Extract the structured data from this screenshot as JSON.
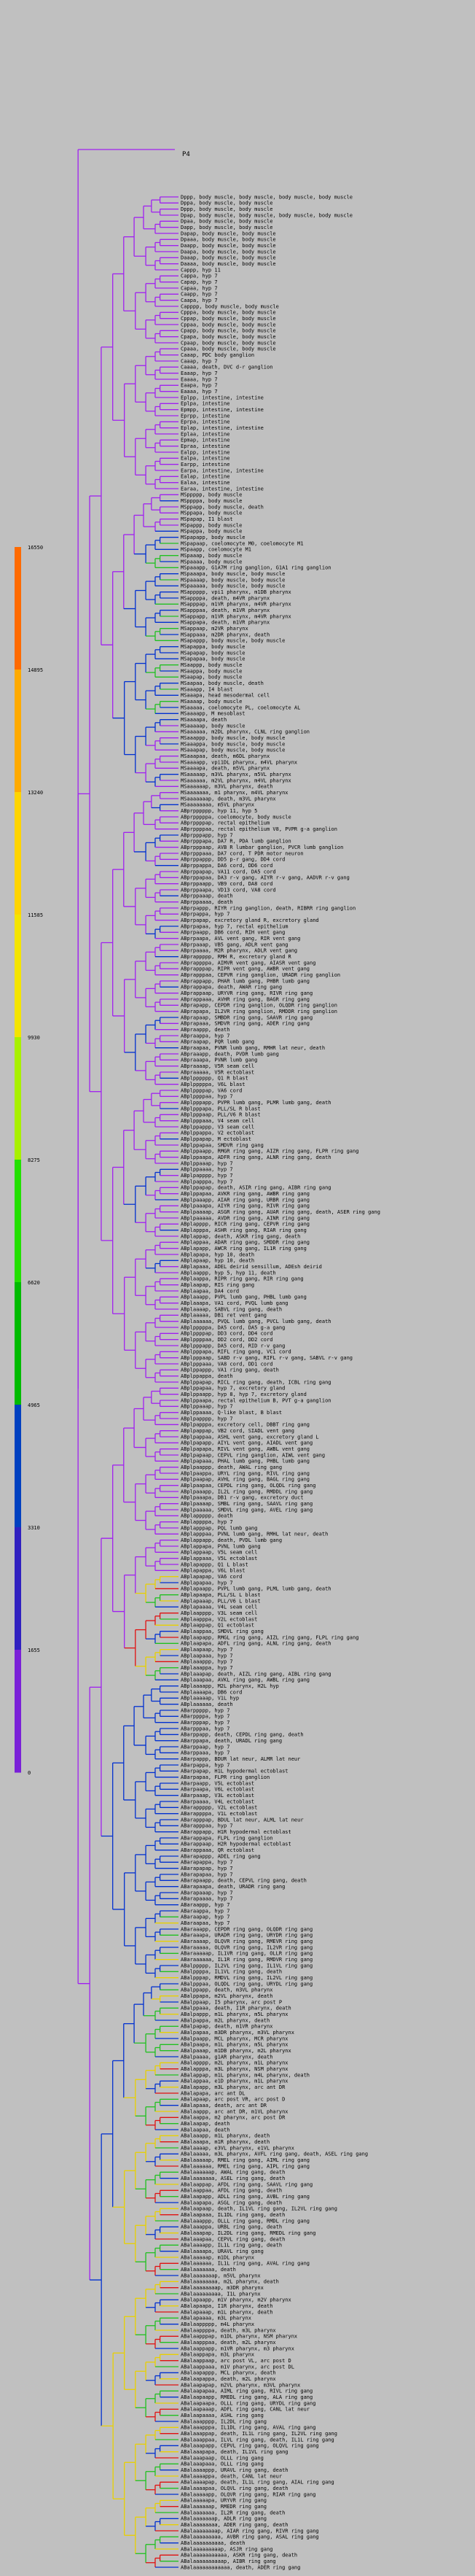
{
  "root_label": "P4",
  "scale": {
    "ticks": [
      "16550",
      "14895",
      "13240",
      "11585",
      "9930",
      "8275",
      "6620",
      "4965",
      "3310",
      "1655",
      "0"
    ],
    "colors": [
      "#ff6a00",
      "#ffaa00",
      "#ffd400",
      "#f4e400",
      "#a8f000",
      "#22e000",
      "#00bb00",
      "#0040c0",
      "#3020c0",
      "#7a20d8",
      "#a020f0"
    ]
  },
  "leaves": [
    "Dppp, body muscle, body muscle, body muscle, body muscle",
    "Dppa, body muscle, body muscle",
    "Dppp, body muscle, body muscle",
    "Dpap, body muscle, body muscle, body muscle, body muscle",
    "Dpaa, body muscle, body muscle",
    "Dapp, body muscle, body muscle",
    "Dapap, body muscle, body muscle",
    "Dpaaa, body muscle, body muscle",
    "Daapp, body muscle, body muscle",
    "Daapa, body muscle, body muscle",
    "Daaap, body muscle, body muscle",
    "Daaaa, body muscle, body muscle",
    "Cappp, hyp 11",
    "Cappa, hyp 7",
    "Capap, hyp 7",
    "Capaa, hyp 7",
    "Caapp, hyp 7",
    "Caapa, hyp 7",
    "Capppp, body muscle, body muscle",
    "Cpppa, body muscle, body muscle",
    "Cppap, body muscle, body muscle",
    "Cppaa, body muscle, body muscle",
    "Cpapp, body muscle, body muscle",
    "Cpapa, body muscle, body muscle",
    "Cpaap, body muscle, body muscle",
    "Cpaaa, body muscle, body muscle",
    "Caaap, PDC body ganglion",
    "Caaap, hyp 7",
    "Caaaa, death, DVC d-r ganglion",
    "Eaaap, hyp 7",
    "Eaaaa, hyp 7",
    "Eaapa, hyp 7",
    "Eaaaa, hyp 7",
    "Eplpp, intestine, intestine",
    "Eplpa, intestine",
    "Epmpp, intestine, intestine",
    "Eprpp, intestine",
    "Eprpa, intestine",
    "Eplap, intestine, intestine",
    "Eplaa, intestine",
    "Epmap, intestine",
    "Epraa, intestine",
    "Ealpp, intestine",
    "Ealpa, intestine",
    "Earpp, intestine",
    "Earpa, intestine, intestine",
    "Ealap, intestine",
    "Ealaa, intestine",
    "Earaa, intestine, intestine",
    "MSppppp, body muscle",
    "MSppppa, body muscle",
    "MSppapp, body muscle, death",
    "MSppapa, body muscle",
    "MSpapap, I1 blast",
    "MSpappp, body muscle",
    "MSpappa, body muscle",
    "MSpapapp, body muscle",
    "MSpapaap, coelomocyte M0, coelomocyte M1",
    "MSpaapp, coelomocyte M1",
    "MSpaaap, body muscle",
    "MSpaaaa, body muscle",
    "MSpaaapp, G1A7M ring ganglion, G1A1 ring ganglion",
    "MSpaaapa, body muscle, body muscle",
    "MSpaaaap, body muscle, body muscle",
    "MSpaaaaa, body muscle, body muscle",
    "MSappppp, vpi1 pharynx, m1DB pharynx",
    "MSappppa, death, m4VR pharynx",
    "MSapppap, m1VR pharynx, m4VR pharynx",
    "MSapppaa, death, m1VR pharynx",
    "MSappapp, m1VR pharynx, m4VR pharynx",
    "MSappapa, death, m1VR pharynx",
    "MSappaap, m2VR pharynx",
    "MSappaaa, m2DR pharynx, death",
    "MSapappp, body muscle, body muscle",
    "MSapappa, body muscle",
    "MSapapap, body muscle",
    "MSapapaa, body muscle",
    "MSaappp, body muscle",
    "MSaappa, body muscle",
    "MSaapap, body muscle",
    "MSaapaa, body muscle, death",
    "MSaaapp, I4 blast",
    "MSaaapa, head mesodermal cell",
    "MSaaaap, body muscle",
    "MSaaaaa, coelomocyte PL, coelomocyte AL",
    "MSaaaapp, M mesoblast",
    "MSaaaapa, death",
    "MSaaaaap, body muscle",
    "MSaaaaaa, m2DL pharynx, CLNL ring ganglion",
    "MSaaappp, body muscle, body muscle",
    "MSaaappa, body muscle, body muscle",
    "MSaaapap, body muscle, body muscle",
    "MSaaapaa, death, m6DL pharynx",
    "MSaaaapp, vpi1DL pharynx, m4VL pharynx",
    "MSaaaapa, death, m5VL pharynx",
    "MSaaaaap, m3VL pharynx, m5VL pharynx",
    "MSaaaaaa, m2VL pharynx, m4VL pharynx",
    "MSaaaaaap, m3VL pharynx, death",
    "MSaaaaaaa, m1 pharynx, m4VL pharynx",
    "MSaaaaaaap, death, m3VL pharynx",
    "MSaaaaaaaa, m5VL pharynx",
    "ABprpppppp, hyp 11, hyp 5",
    "ABprpppppa, coelomocyte, body muscle",
    "ABprppppap, rectal epithelium",
    "ABprppppaa, rectal epithelium V8, PVPR g-a ganglion",
    "ABprpppapp, hyp 7",
    "ABprpppapa, DA7 R, PDA lumb ganglion",
    "ABprpppaap, AVB R lumbar ganglion, PVCR lumb ganglion",
    "ABprpppaaa, DA7 cord, T PDR motor neuron",
    "ABprppappp, DD5 p-r gang, DD4 cord",
    "ABprppappa, DA6 cord, DD6 cord",
    "ABprppapap, VA11 cord, DA5 cord",
    "ABprppapaa, DA3 r-v gang, AIYR r-v gang, AADVR r-v gang",
    "ABprppaapp, VB9 cord, DA8 cord",
    "ABprppaapa, VD13 cord, VA8 cord",
    "ABprppaaap, death",
    "ABprppaaaa, death",
    "ABprpappp, RIYR ring ganglion, death, RIBRR ring ganglion",
    "ABprpappa, hyp 7",
    "ABprpapap, excretory gland R, excretory gland",
    "ABprpapaa, hyp 7, rectal epithelium",
    "ABprpaapp, DB6 cord, RIH vent gang",
    "ABprpaapa, AVL vent gang, RIR vent gang",
    "ABprpaaap, VB5 gang, ADLR vent gang",
    "ABprpaaaa, M2R pharynx, ADLR vent gang",
    "ABprappppp, RMH R, excretory gland R",
    "ABprappppa, AIMVR vent gang, AIASR vent gang",
    "ABprapppap, RIPR vent gang, AWBR vent gang",
    "ABprapppaa, CEPVR ring ganglion, URADR ring ganglion",
    "ABprappapp, PHAR lumb gang, PHBR lumb gang",
    "ABprappapa, death, AWAR ring gang",
    "ABprappaap, URYVR ring gang, RIVR ring gang",
    "ABprappaaa, AVHR ring gang, BAGR ring gang",
    "ABprapapp, CEPDR ring ganglion, OLQDR ring ganglion",
    "ABprapapa, IL2VR ring ganglion, RMDDR ring ganglion",
    "ABprapaap, SMBDR ring gang, SAAVR ring gang",
    "ABprapaaa, SMDVR ring gang, ADER ring gang",
    "ABpraappp, death",
    "ABpraappa, hyp 7",
    "ABpraapap, PQR lumb gang",
    "ABpraapaa, PVNR lumb gang, RMHR lat neur, death",
    "ABpraaapp, death, PVDR lumb gang",
    "ABpraaapa, PVNR lumb gang",
    "ABpraaaap, V5R seam cell",
    "ABpraaaaa, V5R ectoblast",
    "ABplpppppp, Q1 R blast",
    "ABplpppppa, V6L blast",
    "ABplppppap, VA6 cord",
    "ABplppppaa, hyp 7",
    "ABplpppapp, PVPR lumb gang, PLMR lumb gang, death",
    "ABplpppapa, PLL/SL R blast",
    "ABplpppaap, PLL/V6 R blast",
    "ABplpppaaa, V4 seam cell",
    "ABplppappp, V3 seam cell",
    "ABplppappa, V2 ectoblast",
    "ABplppapap, M ectoblast",
    "ABplppapaa, SMDVR ring gang",
    "ABplppaapp, RMGR ring gang, AIZR ring gang, FLPR ring gang",
    "ABplppaapa, ADFR ring gang, ALNR ring gang, death",
    "ABplppaaap, hyp 7",
    "ABplppaaaa, hyp 7",
    "ABplpapppp, hyp 7",
    "ABplpapppa, hyp 7",
    "ABplppapap, death, ASIR ring gang, AIBR ring gang",
    "ABplppapaa, AVKR ring gang, AWBR ring gang",
    "ABplpaaapp, AIAR ring gang, URBR ring gang",
    "ABplpaaapa, AIYR ring gang, RIVR ring gang",
    "ABplpaaaap, ASGR ring gang, AUAR ring gang, death, ASER ring gang",
    "ABplpaaaaa, AVDR ring gang, AINR ring gang",
    "ABplapppp, RICR ring gang, CEPVR ring gang",
    "ABplapppa, ASHR ring gang, RIAR ring gang",
    "ABplappap, death, ASKR ring gang, death",
    "ABplappaa, ADAR ring gang, SMDDR ring gang",
    "ABplapapp, AWCR ring gang, IL1R ring gang",
    "ABplapapa, hyp 10, death",
    "ABplapaap, hyp 10, death",
    "ABplapaaa, ADEL deirid sensillum, ADEsh deirid",
    "ABplaappp, hyp 5, hyp 11, death",
    "ABplaappa, RIPR ring gang, RIR ring gang",
    "ABplaapap, RIS ring gang",
    "ABplaapaa, DA4 cord",
    "ABplaaapp, PVPL lumb gang, PHBL lumb gang",
    "ABplaaapa, VA1 cord, PVQL lumb gang",
    "ABplaaaap, SABVL ring gang, death",
    "ABplaaaaa, DB1 ret vent gang",
    "ABplaaaaaa, PVQL lumb gang, PVCL lumb gang, death",
    "ABplpppppa, DA5 cord, DA5 g-a gang",
    "ABplppppap, DD3 cord, DD4 cord",
    "ABplppppaa, DD2 cord, DD2 cord",
    "ABplpppapp, DA5 cord, RID r-v gang",
    "ABplpppapa, RIFL ring gang, VC1 cord",
    "ABplpppaap, SABD r-v gang, RIFL r-v gang, SABVL r-v gang",
    "ABplpppaaa, VA8 cord, DD1 cord",
    "ABplppappp, VA1 ring gang, death",
    "ABplppappa, death",
    "ABplppapap, RICL ring gang, death, ICBL ring gang",
    "ABplppapaa, hyp 7, excretory gland",
    "ABplppaapp, hyp 8, hyp 7, excretory gland",
    "ABplppaapa, rectal epithelium B, PVT g-a ganglion",
    "ABplppaaap, hyp 7",
    "ABplppaaaa, Q-like blast, B blast",
    "ABplpapppp, hyp 7",
    "ABplpapppa, excretory cell, DBBT ring gang",
    "ABplpappap, VB2 cord, SIADL vent gang",
    "ABplpappaa, ASHL vent gang, excretory gland L",
    "ABplpapapp, AIYL vent gang, AIADL vent gang",
    "ABplpapapa, RIVL vent gang, AWBL vent gang",
    "ABplpapaap, CEPVL ring ganglion, AIWL vent gang",
    "ABplpapaaa, PHAL lumb gang, PHBL lumb gang",
    "ABplpaappp, death, AWAL ring gang",
    "ABplpaappa, URYL ring gang, RIVL ring gang",
    "ABplpaapap, AVHL ring gang, BAGL ring gang",
    "ABplpaapaa, CEPDL ring gang, OLQDL ring gang",
    "ABplpaaapp, IL2L ring gang, RMDDL ring gang",
    "ABplpaaapa, DB1 r-v gang, excretory duct",
    "ABplpaaaap, SMBL ring gang, SAAVL ring gang",
    "ABplpaaaaa, SMDVL ring gang, AVEL ring gang",
    "ABplappppp, death",
    "ABplappppa, hyp 7",
    "ABplapppap, PQL lumb gang",
    "ABplapppaa, PVNL lumb gang, RMHL lat neur, death",
    "ABplappapp, death, PVDL lumb gang",
    "ABplappapa, PVNL lumb gang",
    "ABplappaap, V5L seam cell",
    "ABplappaaa, V5L ectoblast",
    "ABplapappp, Q1 L blast",
    "ABplapappa, V6L blast",
    "ABplapapap, VA6 cord",
    "ABplapapaa, hyp 7",
    "ABplapaapp, PVPL lumb gang, PLML lumb gang, death",
    "ABplapaapa, PLL/SL L blast",
    "ABplapaaap, PLL/V6 L blast",
    "ABplapaaaa, V4L seam cell",
    "ABplaapppp, V3L seam cell",
    "ABplaapppa, V2L ectoblast",
    "ABplaappap, Q1 ectoblast",
    "ABplaappaa, SMDVL ring gang",
    "ABplaapapp, RMGL ring gang, AIZL ring gang, FLPL ring gang",
    "ABplaapapa, ADFL ring gang, ALNL ring gang, death",
    "ABplaapaap, hyp 7",
    "ABplaapaaa, hyp 7",
    "ABplaaappp, hyp 7",
    "ABplaaappa, hyp 7",
    "ABplaaapap, death, AIZL ring gang, AIBL ring gang",
    "ABplaaapaa, AVKL ring gang, AWBL ring gang",
    "ABplaaaapp, M2L pharynx, H2L hyp",
    "ABplaaaapa, DB6 cord",
    "ABplaaaaap, V1L hyp",
    "ABplaaaaaa, death",
    "ABarppppp, hyp 7",
    "ABarppppa, hyp 7",
    "ABarpppap, hyp 7",
    "ABarpppaa, hyp 7",
    "ABarppapp, death, CEPDL ring gang, death",
    "ABarppapa, death, URADL ring gang",
    "ABarppaap, hyp 7",
    "ABarppaaa, hyp 7",
    "ABarpappp, BDUR lat neur, ALMR lat neur",
    "ABarpappa, hyp 7",
    "ABarpapap, H1L hypodermal ectoblast",
    "ABarpapaa, FLPR ring ganglion",
    "ABarpaapp, V5L ectoblast",
    "ABarpaapa, V6L ectoblast",
    "ABarpaaap, V3L ectoblast",
    "ABarpaaaa, V4L ectoblast",
    "ABarappppp, V2L ectoblast",
    "ABarappppa, V1L ectoblast",
    "ABarapppap, BDUL lat neur, ALML lat neur",
    "ABarapppaa, hyp 7",
    "ABarappapp, H1R hypodermal ectoblast",
    "ABarappapa, FLPL ring ganglion",
    "ABarappaap, H2R hypodermal ectoblast",
    "ABarappaaa, QR ectoblast",
    "ABarapappp, ADEL ring gang",
    "ABarapappa, hyp 7",
    "ABarapapap, hyp 7",
    "ABarapapaa, hyp 7",
    "ABarapaapp, death, CEPVL ring gang, death",
    "ABarapaapa, death, URADR ring gang",
    "ABarapaaap, hyp 7",
    "ABarapaaaa, hyp 7",
    "ABaraappp, hyp 7",
    "ABaraappa, hyp 7",
    "ABaraapap, hyp 7",
    "ABaraapaa, hyp 7",
    "ABaraaapp, CEPDR ring gang, OLQDR ring gang",
    "ABaraaapa, URADR ring gang, URYDR ring gang",
    "ABaraaaap, OLQVR ring gang, RMEVR ring gang",
    "ABaraaaaa, OLQVR ring gang, IL2VR ring gang",
    "ABaraaaaap, IL1VR ring gang, OLLR ring gang",
    "ABaraaaaaa, IL1R ring gang, RMDVR ring gang",
    "ABalppppp, IL2VL ring gang, IL1VL ring gang",
    "ABalppppa, IL1VL ring gang, death",
    "ABalpppap, RMDVL ring gang, IL2VL ring gang",
    "ABalpppaa, OLQDL ring gang, URYDL ring gang",
    "ABalppapp, death, m3VL pharynx",
    "ABalppapa, m2VL pharynx, death",
    "ABalppaap, I5 pharynx, arc post P",
    "ABalppaaa, death, I1R pharynx, death",
    "ABalpappp, m1L pharynx, m5L pharynx",
    "ABalpappa, m2L pharynx, death",
    "ABalpapap, death, m1VR pharynx",
    "ABalpapaa, m3DR pharynx, m3VL pharynx",
    "ABalpaapp, MCL pharynx, MCR pharynx",
    "ABalpaapa, m1L pharynx, m5L pharynx",
    "ABalpaaap, m1DB pharynx, m2L pharynx",
    "ABalpaaaa, g1AR pharynx, death",
    "ABalapppp, m2L pharynx, m1L pharynx",
    "ABalapppa, m3L pharynx, NSM pharynx",
    "ABalappap, m1L pharynx, m4L pharynx, death",
    "ABalappaa, e1D pharynx, m1L pharynx",
    "ABalapapp, m3L pharynx, arc ant DR",
    "ABalapapa, arc ant DL",
    "ABalapaap, arc post VR, arc post D",
    "ABalapaaa, death, arc ant DR",
    "ABalaappp, arc ant DR, m1VL pharynx",
    "ABalaappa, m2 pharynx, arc post DR",
    "ABalaapap, death",
    "ABalaapaa, death",
    "ABalaaapp, m1L pharynx, death",
    "ABalaaapa, m1R pharynx, death",
    "ABalaaaap, e3VL pharynx, e1VL pharynx",
    "ABalaaaaa, m3L pharynx, AVFL ring gang, death, ASEL ring gang",
    "ABalaaaaap, RMEL ring gang, AIML ring gang",
    "ABalaaaaaa, RMEL ring gang, AIPL ring gang",
    "ABalaaaaaap, AWAL ring gang, death",
    "ABalaaaaaaa, ASEL ring gang, death",
    "ABalaappap, AFDL ring gang, SAAVL ring gang",
    "ABalaappaa, AFDL ring gang, death",
    "ABalaapapp, ADLL ring gang, AVBL ring gang",
    "ABalaapapa, ASGL ring gang, death",
    "ABalaapaap, death, IL1VL ring gang, IL2VL ring gang",
    "ABalaapaaa, IL1DL ring gang, death",
    "ABalaaappp, OLLL ring gang, RMDL ring gang",
    "ABalaaappa, URBL ring gang, death",
    "ABalaaapap, IL2DL ring gang, RMEDL ring gang",
    "ABalaaapaa, CEPVL ring gang, death",
    "ABalaaaapp, IL1L ring gang, death",
    "ABalaaaapa, URAVL ring gang",
    "ABalaaaaap, m1DL pharynx",
    "ABalaaaaaa, IL1L ring gang, AVAL ring gang",
    "ABalaaaaaaa, death",
    "ABalaaaaaaap, m5VL pharynx",
    "ABalaaaaaaaa, m2L pharynx, death",
    "ABalaaaaaaaap, m3DR pharynx",
    "ABalaaaaaaaaa, I1L pharynx",
    "ABalapaapp, m1V pharynx, m2V pharynx",
    "ABalapaapa, I1R pharynx, death",
    "ABalapaaap, m1L pharynx, death",
    "ABalapaaaa, m3L pharynx",
    "ABalaappppp, m4L pharynx",
    "ABalaappppa, death, m3L pharynx",
    "ABalaapppap, m1DL pharynx, NSM pharynx",
    "ABalaapppaa, death, m2L pharynx",
    "ABalaappapp, m1VR pharynx, m3 pharynx",
    "ABalaappapa, m3L pharynx",
    "ABalaappaap, arc post VL, arc post D",
    "ABalaappaaa, m1V pharynx, arc post DL",
    "ABalaapappp, MCL pharynx, death",
    "ABalaapappa, death, m2L pharynx",
    "ABalaapapap, m2VL pharynx, m3VL pharynx",
    "ABalaapapaa, AIML ring gang, RIVL ring gang",
    "ABalaapaapp, RMEDL ring gang, ALA ring gang",
    "ABalaapaapa, OLLL ring gang, URYDL ring gang",
    "ABalaapaaap, ADFL ring gang, CANL lat neur",
    "ABalaapaaaa, ASHL ring gang",
    "ABalaaapppp, IL2DL ring gang",
    "ABalaaapppa, IL1DL ring gang, AVAL ring gang",
    "ABalaaappap, death, IL1L ring gang, IL2VL ring gang",
    "ABalaaappaa, ILVL ring gang, death, IL1L ring gang",
    "ABalaaapapp, CEPVL ring gang, OLQVL ring gang",
    "ABalaaapapa, death, IL1VL ring gang",
    "ABalaaapaap, OLLL ring gang",
    "ABalaaapaaa, OLLL ring gang",
    "ABalaaaappp, URAVL ring gang, death",
    "ABalaaaappa, death, CANL lat neur",
    "ABalaaaapap, death, IL1L ring gang, AIAL ring gang",
    "ABalaaaapaa, OLQVL ring gang, death",
    "ABalaaaaapp, OLQVR ring gang, RIAR ring gang",
    "ABalaaaaapa, URYVR ring gang",
    "ABalaaaaaap, RMEDR ring gang",
    "ABalaaaaaaa, IL2R ring gang, death",
    "ABalaaaaaaap, ADLR ring gang",
    "ABalaaaaaaaa, ADER ring gang, death",
    "ABalaaaaaaaap, AIAR ring gang, RIVR ring gang",
    "ABalaaaaaaaaa, AVBR ring gang, ASAL ring gang",
    "ABalaaaaaaaaaa, death",
    "ABalaaaaaaaaap, ASJR ring gang",
    "ABalaaaaaaaaaaa, ASKR ring gang, death",
    "ABalaaaaaaaaaap, AIBR ring gang",
    "ABalaaaaaaaaaaaa, death, ADER ring gang"
  ]
}
